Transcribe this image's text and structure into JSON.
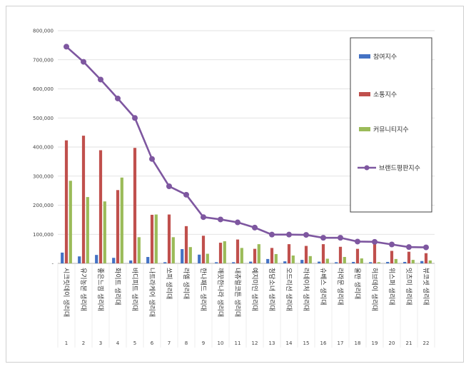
{
  "chart_data": {
    "type": "bar",
    "title": "",
    "xlabel": "",
    "ylabel": "",
    "ylim": [
      0,
      800000
    ],
    "yticks": [
      "-",
      "100,000",
      "200,000",
      "300,000",
      "400,000",
      "500,000",
      "600,000",
      "700,000",
      "800,000"
    ],
    "grid": true,
    "legend_position": "right",
    "index_labels": [
      "1",
      "2",
      "3",
      "4",
      "5",
      "6",
      "7",
      "8",
      "9",
      "10",
      "11",
      "12",
      "13",
      "14",
      "15",
      "16",
      "17",
      "18",
      "19",
      "20",
      "21",
      "22"
    ],
    "categories": [
      "시크릿데이 생리대",
      "유기농본 생리대",
      "좋은느낌 생리대",
      "화이트 생리대",
      "바디피트 생리대",
      "나트라케어 생리대",
      "쏘피 생리대",
      "라엘 생리대",
      "한나패드 생리대",
      "깨끗한나라 생리대",
      "내츄럴코튼 생리대",
      "예지미인 생리대",
      "청담소녀 생리대",
      "오드리선 생리대",
      "라네이처 생리대",
      "슈베스 생리대",
      "라라문 생리대",
      "울만 생리대",
      "허브데이 생리대",
      "위스퍼 생리대",
      "잇츠미 생리대",
      "뷰코셋 생리대"
    ],
    "series": [
      {
        "name": "참여지수",
        "kind": "bar",
        "color": "#4472c4",
        "values": [
          37000,
          24000,
          29000,
          19000,
          10000,
          22000,
          4000,
          49000,
          30000,
          4000,
          4000,
          6000,
          15000,
          7000,
          12000,
          6000,
          4000,
          5000,
          4000,
          5000,
          5000,
          8000
        ]
      },
      {
        "name": "소통지수",
        "kind": "bar",
        "color": "#c0504d",
        "values": [
          423000,
          439000,
          389000,
          252000,
          397000,
          167000,
          168000,
          128000,
          95000,
          71000,
          82000,
          50000,
          53000,
          66000,
          60000,
          66000,
          57000,
          50000,
          69000,
          43000,
          40000,
          35000
        ]
      },
      {
        "name": "커뮤니티지수",
        "kind": "bar",
        "color": "#9bbb59",
        "values": [
          284000,
          228000,
          213000,
          295000,
          90000,
          168000,
          90000,
          56000,
          33000,
          76000,
          53000,
          66000,
          32000,
          27000,
          25000,
          16000,
          22000,
          17000,
          4000,
          15000,
          12000,
          10000
        ]
      },
      {
        "name": "브랜드평판지수",
        "kind": "line",
        "color": "#7e57a0",
        "values": [
          745000,
          693000,
          632000,
          567000,
          500000,
          359000,
          265000,
          236000,
          159000,
          151000,
          141000,
          123000,
          99000,
          99000,
          98000,
          88000,
          88000,
          75000,
          74000,
          65000,
          56000,
          55000
        ]
      }
    ]
  }
}
